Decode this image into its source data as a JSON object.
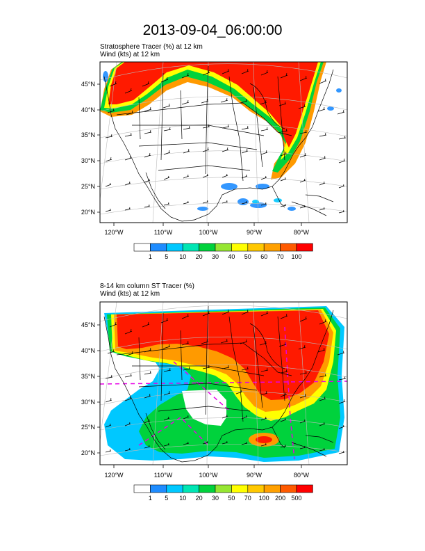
{
  "title": "2013-09-04_06:00:00",
  "panels": [
    {
      "line1": "Stratosphere Tracer   (%)     at   12 km",
      "line2": "Wind   (kts)     at   12 km",
      "lon_ticks": [
        "120°W",
        "110°W",
        "100°W",
        "90°W",
        "80°W"
      ],
      "lat_ticks": [
        "45°N",
        "40°N",
        "35°N",
        "30°N",
        "25°N",
        "20°N"
      ],
      "colorbar_labels": [
        "1",
        "5",
        "10",
        "20",
        "30",
        "40",
        "50",
        "60",
        "70",
        "100"
      ]
    },
    {
      "line1": "8-14 km column ST Tracer   (%)",
      "line2": "Wind   (kts)     at   12 km",
      "lon_ticks": [
        "120°W",
        "110°W",
        "100°W",
        "90°W",
        "80°W"
      ],
      "lat_ticks": [
        "45°N",
        "40°N",
        "35°N",
        "30°N",
        "25°N",
        "20°N"
      ],
      "colorbar_labels": [
        "1",
        "5",
        "10",
        "20",
        "30",
        "50",
        "70",
        "100",
        "200",
        "500"
      ]
    }
  ],
  "colorbar_colors": [
    "#ffffff",
    "#1e8cff",
    "#00c8ff",
    "#00e6b4",
    "#00d23c",
    "#96e632",
    "#ffff00",
    "#ffc800",
    "#ffa000",
    "#ff5a00",
    "#ff0000"
  ]
}
